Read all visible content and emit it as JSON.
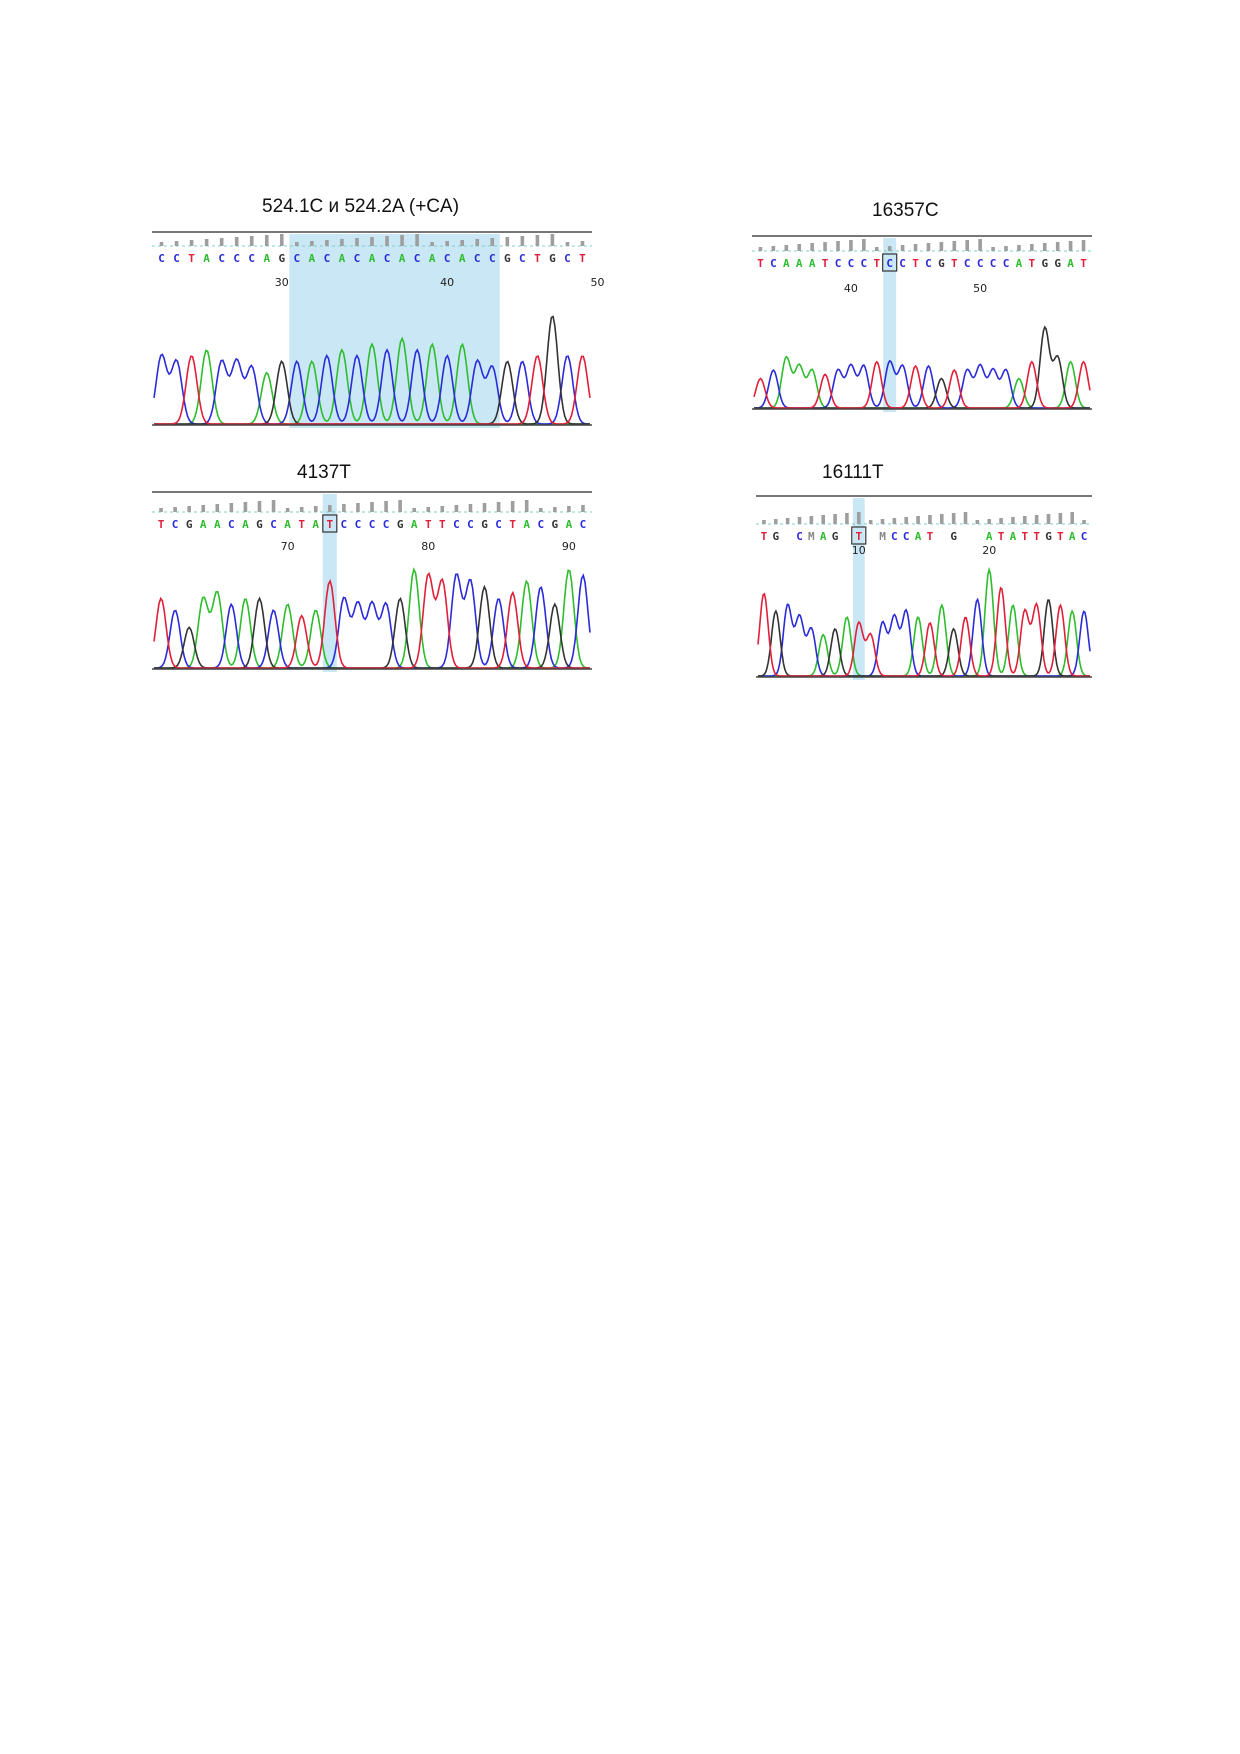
{
  "colors": {
    "A": "#2ebd2e",
    "C": "#2b2bd8",
    "G": "#333333",
    "T": "#e0203a",
    "highlight": "#bfe3f3",
    "qv": "#9e9e9e",
    "frame": "#777777"
  },
  "chart_data": [
    {
      "type": "line",
      "title": "524.1C и 524.2A (+CA)",
      "bases": [
        "C",
        "C",
        "T",
        "A",
        "C",
        "C",
        "C",
        "A",
        "G",
        "C",
        "A",
        "C",
        "A",
        "C",
        "A",
        "C",
        "A",
        "C",
        "A",
        "C",
        "A",
        "C",
        "C",
        "G",
        "C",
        "T",
        "G",
        "C",
        "T"
      ],
      "position_labels": [
        {
          "index": 8,
          "text": "30"
        },
        {
          "index": 19,
          "text": "40"
        },
        {
          "index": 29,
          "text": "50"
        }
      ],
      "highlight_range": [
        9,
        22
      ],
      "boxed_index": null,
      "peaks": [
        0.6,
        0.55,
        0.6,
        0.65,
        0.55,
        0.55,
        0.5,
        0.45,
        0.55,
        0.55,
        0.55,
        0.6,
        0.65,
        0.6,
        0.7,
        0.65,
        0.75,
        0.65,
        0.7,
        0.6,
        0.7,
        0.55,
        0.5,
        0.55,
        0.55,
        0.6,
        0.95,
        0.6,
        0.6
      ]
    },
    {
      "type": "line",
      "title": "16357C",
      "bases": [
        "T",
        "C",
        "A",
        "A",
        "A",
        "T",
        "C",
        "C",
        "C",
        "T",
        "C",
        "C",
        "T",
        "C",
        "G",
        "T",
        "C",
        "C",
        "C",
        "C",
        "A",
        "T",
        "G",
        "G",
        "A",
        "T"
      ],
      "position_labels": [
        {
          "index": 7,
          "text": "40"
        },
        {
          "index": 17,
          "text": "50"
        }
      ],
      "highlight_range": [
        10,
        10
      ],
      "boxed_index": 10,
      "peaks": [
        0.35,
        0.45,
        0.6,
        0.5,
        0.45,
        0.4,
        0.45,
        0.5,
        0.5,
        0.55,
        0.55,
        0.5,
        0.5,
        0.5,
        0.35,
        0.45,
        0.45,
        0.5,
        0.45,
        0.45,
        0.35,
        0.55,
        0.95,
        0.6,
        0.55,
        0.55
      ]
    },
    {
      "type": "line",
      "title": "4137T",
      "bases": [
        "T",
        "C",
        "G",
        "A",
        "A",
        "C",
        "A",
        "G",
        "C",
        "A",
        "T",
        "A",
        "T",
        "C",
        "C",
        "C",
        "C",
        "G",
        "A",
        "T",
        "T",
        "C",
        "C",
        "G",
        "C",
        "T",
        "A",
        "C",
        "G",
        "A",
        "C"
      ],
      "position_labels": [
        {
          "index": 9,
          "text": "70"
        },
        {
          "index": 19,
          "text": "80"
        },
        {
          "index": 29,
          "text": "90"
        }
      ],
      "highlight_range": [
        12,
        12
      ],
      "boxed_index": 12,
      "peaks": [
        0.6,
        0.5,
        0.35,
        0.6,
        0.65,
        0.55,
        0.6,
        0.6,
        0.5,
        0.55,
        0.45,
        0.5,
        0.75,
        0.6,
        0.55,
        0.55,
        0.55,
        0.6,
        0.85,
        0.8,
        0.75,
        0.8,
        0.75,
        0.7,
        0.6,
        0.65,
        0.75,
        0.7,
        0.55,
        0.85,
        0.8
      ]
    },
    {
      "type": "line",
      "title": "16111T",
      "bases": [
        "T",
        "G",
        "",
        "C",
        "M",
        "A",
        "G",
        "",
        "T",
        "",
        "M",
        "C",
        "C",
        "A",
        "T",
        "",
        "G",
        "",
        "",
        "A",
        "T",
        "A",
        "T",
        "T",
        "G",
        "T",
        "A",
        "C"
      ],
      "position_labels": [
        {
          "index": 8,
          "text": "10"
        },
        {
          "index": 19,
          "text": "20"
        }
      ],
      "highlight_range": [
        8,
        8
      ],
      "boxed_index": 8,
      "peaks": [
        0.7,
        0.55,
        0.6,
        0.5,
        0.4,
        0.35,
        0.4,
        0.5,
        0.45,
        0.35,
        0.45,
        0.5,
        0.55,
        0.5,
        0.45,
        0.6,
        0.4,
        0.5,
        0.65,
        0.9,
        0.75,
        0.6,
        0.55,
        0.6,
        0.65,
        0.6,
        0.55,
        0.55
      ]
    }
  ]
}
